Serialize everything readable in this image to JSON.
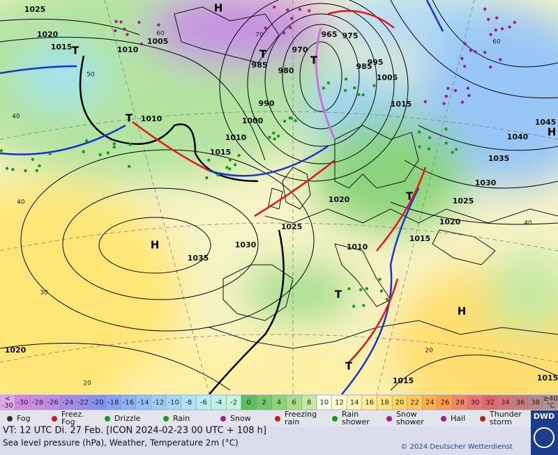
{
  "map": {
    "pressure_labels": [
      "1025",
      "1020",
      "1015",
      "1010",
      "1005",
      "985",
      "980",
      "970",
      "965",
      "975",
      "985",
      "995",
      "1005",
      "990",
      "1000",
      "1010",
      "1015",
      "1010",
      "1015",
      "1045",
      "1040",
      "1035",
      "1030",
      "1025",
      "1020",
      "1020",
      "1025",
      "1030",
      "1035",
      "1015",
      "1010",
      "1015",
      "1020",
      "1015"
    ],
    "temperature_labels": [
      "60",
      "70",
      "50",
      "40",
      "40",
      "30",
      "20",
      "60",
      "40",
      "20"
    ],
    "centers": [
      "H",
      "T",
      "T",
      "T",
      "T",
      "H",
      "H",
      "T",
      "T",
      "H",
      "T"
    ]
  },
  "color_scale": {
    "low": [
      "<",
      "-30"
    ],
    "steps": [
      {
        "label": "-30",
        "color": "#d486e6"
      },
      {
        "label": "-28",
        "color": "#c98de4"
      },
      {
        "label": "-26",
        "color": "#bb8ce8"
      },
      {
        "label": "-24",
        "color": "#a98ae8"
      },
      {
        "label": "-22",
        "color": "#9a8cee"
      },
      {
        "label": "-20",
        "color": "#8490f2"
      },
      {
        "label": "-18",
        "color": "#86a2f6"
      },
      {
        "label": "-16",
        "color": "#8cb2f8"
      },
      {
        "label": "-14",
        "color": "#94c2f8"
      },
      {
        "label": "-12",
        "color": "#9ccef8"
      },
      {
        "label": "-10",
        "color": "#a4daf8"
      },
      {
        "label": "-8",
        "color": "#aee4f6"
      },
      {
        "label": "-6",
        "color": "#b6eef2"
      },
      {
        "label": "-4",
        "color": "#bef2e8"
      },
      {
        "label": "-2",
        "color": "#c4f4dc"
      },
      {
        "label": "0",
        "color": "#5cbe5c"
      },
      {
        "label": "2",
        "color": "#74c86c"
      },
      {
        "label": "4",
        "color": "#8cd47c"
      },
      {
        "label": "6",
        "color": "#a6de8e"
      },
      {
        "label": "8",
        "color": "#c2e8a2"
      },
      {
        "label": "10",
        "color": "#fbfbee"
      },
      {
        "label": "12",
        "color": "#fffcd2"
      },
      {
        "label": "14",
        "color": "#fff6b2"
      },
      {
        "label": "16",
        "color": "#ffee94"
      },
      {
        "label": "18",
        "color": "#ffe676"
      },
      {
        "label": "20",
        "color": "#ffd862"
      },
      {
        "label": "22",
        "color": "#ffc854"
      },
      {
        "label": "24",
        "color": "#ffb244"
      },
      {
        "label": "26",
        "color": "#ff9c48"
      },
      {
        "label": "28",
        "color": "#f48664"
      },
      {
        "label": "30",
        "color": "#ea7472"
      },
      {
        "label": "32",
        "color": "#e06868"
      },
      {
        "label": "34",
        "color": "#d87474"
      },
      {
        "label": "36",
        "color": "#c87c7c"
      },
      {
        "label": "38",
        "color": "#b88686"
      }
    ],
    "high": [
      "≥40",
      "°C"
    ]
  },
  "legend": [
    [
      "Fog"
    ],
    [
      "Freez.",
      "Fog"
    ],
    [
      "Drizzle"
    ],
    [
      "Rain"
    ],
    [
      "Snow"
    ],
    [
      "Freezing",
      "rain"
    ],
    [
      "Rain",
      "shower"
    ],
    [
      "Snow",
      "shower"
    ],
    [
      "Hail"
    ],
    [
      "Thunder",
      "storm"
    ]
  ],
  "footer": {
    "valid": "VT: 12 UTC Di.  27 Feb. [ICON 2024-02-23  00 UTC + 108 h]",
    "description": "Sea level pressure (hPa), Weather, Temperature 2m (°C)",
    "copyright": "© 2024 Deutscher Wetterdienst",
    "logo": "DWD"
  }
}
